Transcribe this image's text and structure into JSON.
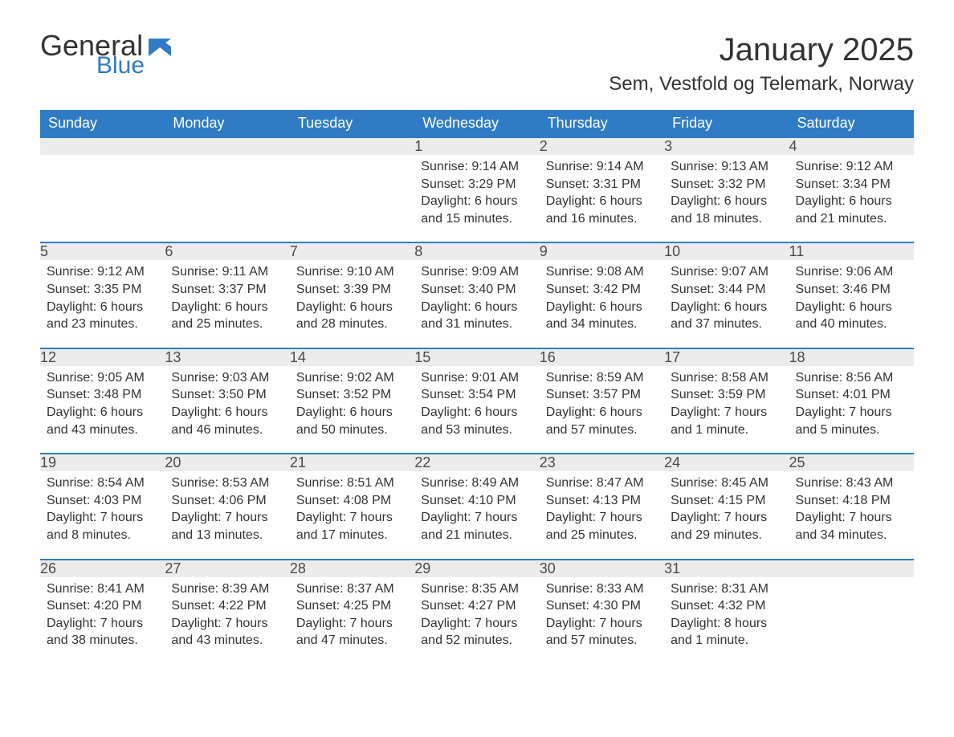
{
  "brand": {
    "line1": "General",
    "line2": "Blue"
  },
  "title": "January 2025",
  "location": "Sem, Vestfold og Telemark, Norway",
  "colors": {
    "brand_blue": "#2f7cc4",
    "header_bg": "#2f7cc4",
    "header_text": "#ffffff",
    "daynum_bg": "#ececec",
    "daynum_text": "#4a4a4a",
    "body_text": "#333333",
    "page_bg": "#ffffff",
    "row_divider": "#2f7cc4"
  },
  "typography": {
    "title_fontsize": 40,
    "location_fontsize": 24,
    "header_fontsize": 18,
    "daynum_fontsize": 18,
    "body_fontsize": 16,
    "font_family": "Segoe UI / Arial"
  },
  "layout": {
    "columns": 7,
    "rows": 5,
    "first_weekday": "Sunday"
  },
  "weekdays": [
    "Sunday",
    "Monday",
    "Tuesday",
    "Wednesday",
    "Thursday",
    "Friday",
    "Saturday"
  ],
  "weeks": [
    [
      null,
      null,
      null,
      {
        "day": "1",
        "sunrise": "Sunrise: 9:14 AM",
        "sunset": "Sunset: 3:29 PM",
        "dl1": "Daylight: 6 hours",
        "dl2": "and 15 minutes."
      },
      {
        "day": "2",
        "sunrise": "Sunrise: 9:14 AM",
        "sunset": "Sunset: 3:31 PM",
        "dl1": "Daylight: 6 hours",
        "dl2": "and 16 minutes."
      },
      {
        "day": "3",
        "sunrise": "Sunrise: 9:13 AM",
        "sunset": "Sunset: 3:32 PM",
        "dl1": "Daylight: 6 hours",
        "dl2": "and 18 minutes."
      },
      {
        "day": "4",
        "sunrise": "Sunrise: 9:12 AM",
        "sunset": "Sunset: 3:34 PM",
        "dl1": "Daylight: 6 hours",
        "dl2": "and 21 minutes."
      }
    ],
    [
      {
        "day": "5",
        "sunrise": "Sunrise: 9:12 AM",
        "sunset": "Sunset: 3:35 PM",
        "dl1": "Daylight: 6 hours",
        "dl2": "and 23 minutes."
      },
      {
        "day": "6",
        "sunrise": "Sunrise: 9:11 AM",
        "sunset": "Sunset: 3:37 PM",
        "dl1": "Daylight: 6 hours",
        "dl2": "and 25 minutes."
      },
      {
        "day": "7",
        "sunrise": "Sunrise: 9:10 AM",
        "sunset": "Sunset: 3:39 PM",
        "dl1": "Daylight: 6 hours",
        "dl2": "and 28 minutes."
      },
      {
        "day": "8",
        "sunrise": "Sunrise: 9:09 AM",
        "sunset": "Sunset: 3:40 PM",
        "dl1": "Daylight: 6 hours",
        "dl2": "and 31 minutes."
      },
      {
        "day": "9",
        "sunrise": "Sunrise: 9:08 AM",
        "sunset": "Sunset: 3:42 PM",
        "dl1": "Daylight: 6 hours",
        "dl2": "and 34 minutes."
      },
      {
        "day": "10",
        "sunrise": "Sunrise: 9:07 AM",
        "sunset": "Sunset: 3:44 PM",
        "dl1": "Daylight: 6 hours",
        "dl2": "and 37 minutes."
      },
      {
        "day": "11",
        "sunrise": "Sunrise: 9:06 AM",
        "sunset": "Sunset: 3:46 PM",
        "dl1": "Daylight: 6 hours",
        "dl2": "and 40 minutes."
      }
    ],
    [
      {
        "day": "12",
        "sunrise": "Sunrise: 9:05 AM",
        "sunset": "Sunset: 3:48 PM",
        "dl1": "Daylight: 6 hours",
        "dl2": "and 43 minutes."
      },
      {
        "day": "13",
        "sunrise": "Sunrise: 9:03 AM",
        "sunset": "Sunset: 3:50 PM",
        "dl1": "Daylight: 6 hours",
        "dl2": "and 46 minutes."
      },
      {
        "day": "14",
        "sunrise": "Sunrise: 9:02 AM",
        "sunset": "Sunset: 3:52 PM",
        "dl1": "Daylight: 6 hours",
        "dl2": "and 50 minutes."
      },
      {
        "day": "15",
        "sunrise": "Sunrise: 9:01 AM",
        "sunset": "Sunset: 3:54 PM",
        "dl1": "Daylight: 6 hours",
        "dl2": "and 53 minutes."
      },
      {
        "day": "16",
        "sunrise": "Sunrise: 8:59 AM",
        "sunset": "Sunset: 3:57 PM",
        "dl1": "Daylight: 6 hours",
        "dl2": "and 57 minutes."
      },
      {
        "day": "17",
        "sunrise": "Sunrise: 8:58 AM",
        "sunset": "Sunset: 3:59 PM",
        "dl1": "Daylight: 7 hours",
        "dl2": "and 1 minute."
      },
      {
        "day": "18",
        "sunrise": "Sunrise: 8:56 AM",
        "sunset": "Sunset: 4:01 PM",
        "dl1": "Daylight: 7 hours",
        "dl2": "and 5 minutes."
      }
    ],
    [
      {
        "day": "19",
        "sunrise": "Sunrise: 8:54 AM",
        "sunset": "Sunset: 4:03 PM",
        "dl1": "Daylight: 7 hours",
        "dl2": "and 8 minutes."
      },
      {
        "day": "20",
        "sunrise": "Sunrise: 8:53 AM",
        "sunset": "Sunset: 4:06 PM",
        "dl1": "Daylight: 7 hours",
        "dl2": "and 13 minutes."
      },
      {
        "day": "21",
        "sunrise": "Sunrise: 8:51 AM",
        "sunset": "Sunset: 4:08 PM",
        "dl1": "Daylight: 7 hours",
        "dl2": "and 17 minutes."
      },
      {
        "day": "22",
        "sunrise": "Sunrise: 8:49 AM",
        "sunset": "Sunset: 4:10 PM",
        "dl1": "Daylight: 7 hours",
        "dl2": "and 21 minutes."
      },
      {
        "day": "23",
        "sunrise": "Sunrise: 8:47 AM",
        "sunset": "Sunset: 4:13 PM",
        "dl1": "Daylight: 7 hours",
        "dl2": "and 25 minutes."
      },
      {
        "day": "24",
        "sunrise": "Sunrise: 8:45 AM",
        "sunset": "Sunset: 4:15 PM",
        "dl1": "Daylight: 7 hours",
        "dl2": "and 29 minutes."
      },
      {
        "day": "25",
        "sunrise": "Sunrise: 8:43 AM",
        "sunset": "Sunset: 4:18 PM",
        "dl1": "Daylight: 7 hours",
        "dl2": "and 34 minutes."
      }
    ],
    [
      {
        "day": "26",
        "sunrise": "Sunrise: 8:41 AM",
        "sunset": "Sunset: 4:20 PM",
        "dl1": "Daylight: 7 hours",
        "dl2": "and 38 minutes."
      },
      {
        "day": "27",
        "sunrise": "Sunrise: 8:39 AM",
        "sunset": "Sunset: 4:22 PM",
        "dl1": "Daylight: 7 hours",
        "dl2": "and 43 minutes."
      },
      {
        "day": "28",
        "sunrise": "Sunrise: 8:37 AM",
        "sunset": "Sunset: 4:25 PM",
        "dl1": "Daylight: 7 hours",
        "dl2": "and 47 minutes."
      },
      {
        "day": "29",
        "sunrise": "Sunrise: 8:35 AM",
        "sunset": "Sunset: 4:27 PM",
        "dl1": "Daylight: 7 hours",
        "dl2": "and 52 minutes."
      },
      {
        "day": "30",
        "sunrise": "Sunrise: 8:33 AM",
        "sunset": "Sunset: 4:30 PM",
        "dl1": "Daylight: 7 hours",
        "dl2": "and 57 minutes."
      },
      {
        "day": "31",
        "sunrise": "Sunrise: 8:31 AM",
        "sunset": "Sunset: 4:32 PM",
        "dl1": "Daylight: 8 hours",
        "dl2": "and 1 minute."
      },
      null
    ]
  ]
}
